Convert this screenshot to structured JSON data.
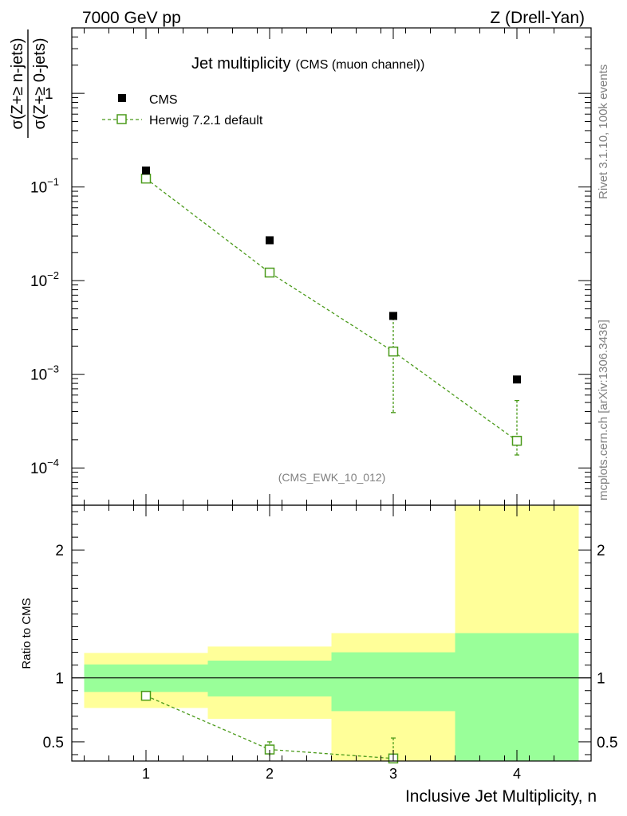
{
  "header": {
    "left": "7000 GeV pp",
    "right": "Z (Drell-Yan)"
  },
  "side_labels": {
    "rivet": "Rivet 3.1.10,  100k events",
    "mcplots": "mcplots.cern.ch [arXiv:1306.3436]"
  },
  "chart_data": [
    {
      "type": "scatter",
      "title": "Jet multiplicity",
      "subtitle": "(CMS (muon channel))",
      "analysis_id": "(CMS_EWK_10_012)",
      "ylabel_num": "σ(Z+≥ n-jets)",
      "ylabel_den": "σ(Z+≥ 0-jets)",
      "yscale": "log",
      "ylim": [
        4e-05,
        5
      ],
      "xlim": [
        0.4,
        4.6
      ],
      "y_ticks": [
        {
          "value": 0.0001,
          "base": "10",
          "exp": "−4"
        },
        {
          "value": 0.001,
          "base": "10",
          "exp": "−3"
        },
        {
          "value": 0.01,
          "base": "10",
          "exp": "−2"
        },
        {
          "value": 0.1,
          "base": "10",
          "exp": "−1"
        },
        {
          "value": 1,
          "base": "1",
          "exp": ""
        }
      ],
      "legend_position": "top-left",
      "series": [
        {
          "name": "CMS",
          "marker": "filled-square",
          "color": "#000000",
          "x": [
            1,
            2,
            3,
            4
          ],
          "y": [
            0.15,
            0.027,
            0.0042,
            0.00088
          ]
        },
        {
          "name": "Herwig 7.2.1 default",
          "marker": "open-square",
          "line": "dashed",
          "color": "#4a9a1a",
          "x": [
            1,
            2,
            3,
            4
          ],
          "y": [
            0.123,
            0.0122,
            0.00175,
            0.000195
          ],
          "yerr_low": [
            0.123,
            0.0122,
            0.00136,
            5.75e-05
          ],
          "yerr_high": [
            0.123,
            0.0122,
            0.00225,
            0.00033
          ]
        }
      ]
    },
    {
      "type": "scatter",
      "ylabel": "Ratio to CMS",
      "xlabel": "Inclusive Jet Multiplicity, n",
      "ylim": [
        0.35,
        2.35
      ],
      "xlim": [
        0.4,
        4.6
      ],
      "x_ticks": [
        "1",
        "2",
        "3",
        "4"
      ],
      "y_ticks": [
        {
          "value": 0.5,
          "label": "0.5"
        },
        {
          "value": 1,
          "label": "1"
        },
        {
          "value": 2,
          "label": "2"
        }
      ],
      "bands": [
        {
          "xlow": 0.5,
          "xhigh": 1.5,
          "yellow": [
            0.765,
            1.195
          ],
          "green": [
            0.89,
            1.105
          ]
        },
        {
          "xlow": 1.5,
          "xhigh": 2.5,
          "yellow": [
            0.68,
            1.245
          ],
          "green": [
            0.855,
            1.135
          ]
        },
        {
          "xlow": 2.5,
          "xhigh": 3.5,
          "yellow": [
            0.35,
            1.35
          ],
          "green": [
            0.74,
            1.2
          ]
        },
        {
          "xlow": 3.5,
          "xhigh": 4.5,
          "yellow": [
            0.35,
            2.35
          ],
          "green": [
            0.35,
            1.35
          ]
        }
      ],
      "series": [
        {
          "name": "Herwig 7.2.1 default",
          "color": "#4a9a1a",
          "x": [
            1,
            2,
            3
          ],
          "y": [
            0.86,
            0.44,
            0.37
          ],
          "yerr_low": [
            0.86,
            0.38,
            0.35
          ],
          "yerr_high": [
            0.86,
            0.5,
            0.53
          ]
        }
      ],
      "colors": {
        "yellow": "#ffff99",
        "green": "#99ff99"
      }
    }
  ]
}
